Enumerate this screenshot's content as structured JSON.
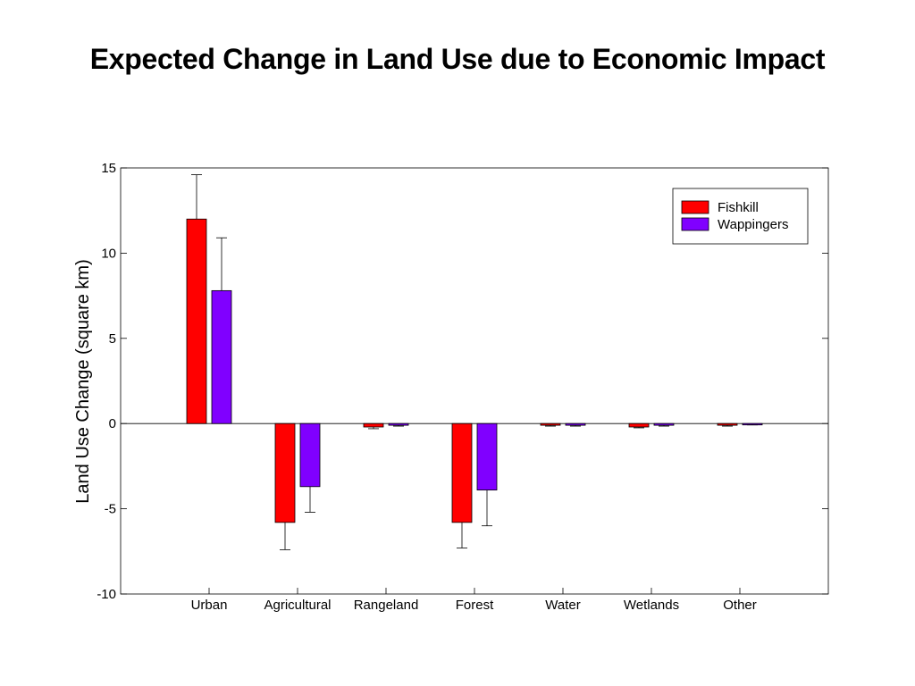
{
  "title": "Expected Change in Land Use due to Economic Impact",
  "chart_data": {
    "type": "bar",
    "title": "Expected Change in Land Use due to Economic Impact",
    "xlabel": "",
    "ylabel": "Land Use Change (square km)",
    "ylim": [
      -10,
      15
    ],
    "yticks": [
      -10,
      -5,
      0,
      5,
      10,
      15
    ],
    "grid": false,
    "legend_position": "top-right",
    "categories": [
      "Urban",
      "Agricultural",
      "Rangeland",
      "Forest",
      "Water",
      "Wetlands",
      "Other"
    ],
    "series": [
      {
        "name": "Fishkill",
        "color": "#ff0000",
        "values": [
          12.0,
          -5.8,
          -0.2,
          -5.8,
          -0.1,
          -0.2,
          -0.1
        ],
        "error": [
          2.6,
          1.6,
          0.1,
          1.5,
          0.05,
          0.05,
          0.05
        ]
      },
      {
        "name": "Wappingers",
        "color": "#8000ff",
        "values": [
          7.8,
          -3.7,
          -0.1,
          -3.9,
          -0.1,
          -0.1,
          -0.05
        ],
        "error": [
          3.1,
          1.5,
          0.05,
          2.1,
          0.05,
          0.05,
          0.03
        ]
      }
    ]
  }
}
